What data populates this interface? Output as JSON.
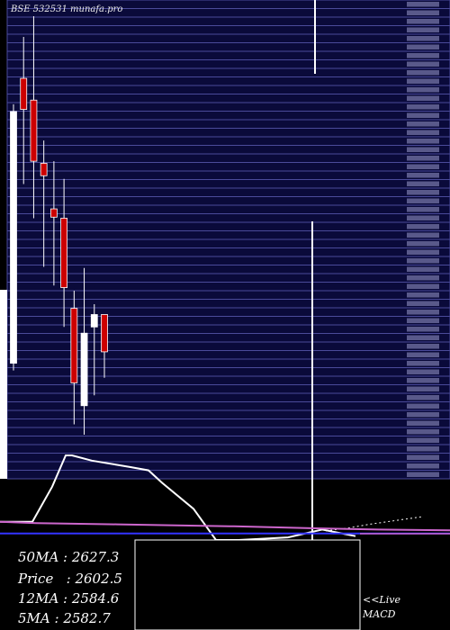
{
  "header": {
    "title": "BSE 532531 munafa.pro"
  },
  "indicator_box": {
    "ma50": "50MA : 2627.3",
    "price": "Price   : 2602.5",
    "ma12": "12MA : 2584.6",
    "ma5": "5MA : 2582.7"
  },
  "macd_label": {
    "live": "<<Live",
    "name": "MACD"
  },
  "colors": {
    "background": "#000000",
    "band_fill": "#0a0a3a",
    "band_line": "#4a4a9a",
    "bullish_candle": "#ffffff",
    "bearish_candle": "#cc0000",
    "signal_line": "#cc66cc",
    "zero_line": "#3333ff"
  },
  "chart_data": [
    {
      "type": "candlestick",
      "title": "BSE 532531 munafa.pro",
      "candles": [
        {
          "open": 2485,
          "high": 2735,
          "low": 2478,
          "close": 2728
        },
        {
          "open": 2760,
          "high": 2800,
          "low": 2658,
          "close": 2730
        },
        {
          "open": 2739,
          "high": 2820,
          "low": 2625,
          "close": 2680
        },
        {
          "open": 2678,
          "high": 2700,
          "low": 2578,
          "close": 2666
        },
        {
          "open": 2634,
          "high": 2680,
          "low": 2560,
          "close": 2626
        },
        {
          "open": 2625,
          "high": 2663,
          "low": 2520,
          "close": 2558
        },
        {
          "open": 2538,
          "high": 2555,
          "low": 2426,
          "close": 2466
        },
        {
          "open": 2444,
          "high": 2577,
          "low": 2416,
          "close": 2514
        },
        {
          "open": 2520,
          "high": 2542,
          "low": 2454,
          "close": 2532
        },
        {
          "open": 2532,
          "high": 2532,
          "low": 2471,
          "close": 2496
        }
      ],
      "candle_x_range": [
        15,
        116
      ],
      "band_count": 56
    },
    {
      "type": "line",
      "name": "MACD",
      "series": [
        {
          "style": "solid",
          "color": "#ffffff",
          "values": [
            -1.8,
            -1.8,
            3.6,
            8.4,
            8.4,
            7.6,
            6.6,
            6.1,
            4.2,
            0.2,
            -4.6,
            -4.6,
            -4.2,
            -3.0,
            -4.0
          ]
        },
        {
          "style": "dotted",
          "color": "#ffffff",
          "values": [
            -3.2,
            -2.8,
            -2.2,
            -1.6,
            -1.0
          ]
        },
        {
          "style": "solid",
          "color": "#cc66cc",
          "values": [
            -1.8,
            -2.0,
            -2.2,
            -2.5,
            -2.8,
            -3.0,
            -3.1
          ]
        },
        {
          "style": "solid",
          "color": "#3333ff",
          "values": [
            -3.6,
            -3.6
          ]
        }
      ]
    }
  ]
}
